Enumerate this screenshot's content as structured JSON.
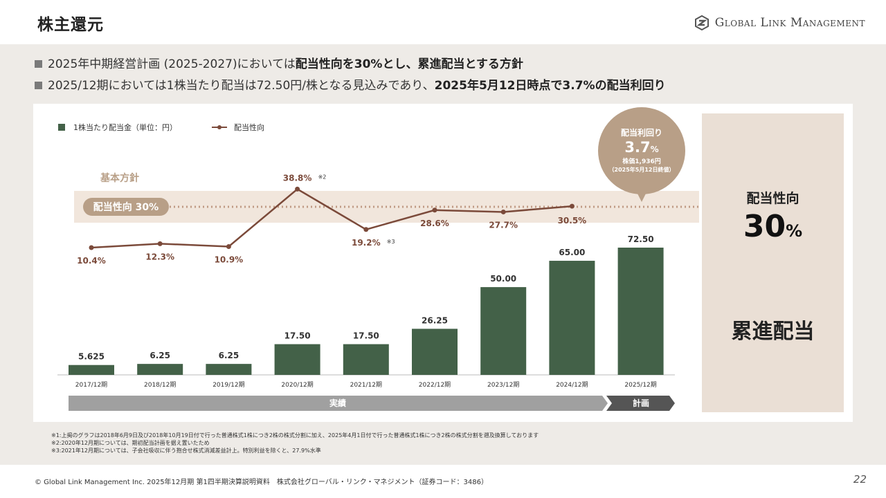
{
  "header": {
    "title": "株主還元",
    "logo_text": "Global Link Management"
  },
  "bullets": [
    {
      "normal": "2025年中期経営計画 (2025-2027)においては",
      "bold": "配当性向を30%とし、累進配当とする方針"
    },
    {
      "normal": "2025/12期においては1株当たり配当は72.50円/株となる見込みであり、",
      "bold": "2025年5月12日時点で3.7%の配当利回り"
    }
  ],
  "chart_data": {
    "type": "bar",
    "categories": [
      "2017/12期",
      "2018/12期",
      "2019/12期",
      "2020/12期",
      "2021/12期",
      "2022/12期",
      "2023/12期",
      "2024/12期",
      "2025/12期"
    ],
    "series": [
      {
        "name": "1株当たり配当金（単位：円）",
        "type": "bar",
        "color": "#436148",
        "values": [
          5.625,
          6.25,
          6.25,
          17.5,
          17.5,
          26.25,
          50.0,
          65.0,
          72.5
        ],
        "labels": [
          "5.625",
          "6.25",
          "6.25",
          "17.50",
          "17.50",
          "26.25",
          "50.00",
          "65.00",
          "72.50"
        ]
      },
      {
        "name": "配当性向",
        "type": "line",
        "color": "#7b4a3a",
        "values": [
          10.4,
          12.3,
          10.9,
          38.8,
          19.2,
          28.6,
          27.7,
          30.5,
          null
        ],
        "labels": [
          "10.4%",
          "12.3%",
          "10.9%",
          "38.8%",
          "19.2%",
          "28.6%",
          "27.7%",
          "30.5%",
          ""
        ],
        "notes": [
          "",
          "",
          "",
          "※2",
          "※3",
          "",
          "",
          "",
          ""
        ]
      }
    ],
    "policy_band_label": "基本方針",
    "policy_line_label": "配当性向 30%",
    "policy_value": 30,
    "yield_bubble": {
      "title": "配当利回り",
      "value": "3.7",
      "unit": "%",
      "price": "株価1,936円",
      "date": "（2025年5月12日終値）"
    },
    "periods": [
      {
        "label": "実績"
      },
      {
        "label": "計画"
      }
    ],
    "legend_position": "top-left"
  },
  "side": {
    "label": "配当性向",
    "value": "30",
    "unit": "%",
    "policy": "累進配当"
  },
  "footnotes": [
    "※1:上掲のグラフは2018年6月9日及び2018年10月19日付で行った普通株式1株につき2株の株式分割に加え、2025年4月1日付で行った普通株式1株につき2株の株式分割を遡及換算しております",
    "※2:2020年12月期については、期初配当計画を据え置いたため",
    "※3:2021年12月期については、子会社吸収に伴う抱合せ株式消滅差益計上。特別利益を除くと、27.9%水準"
  ],
  "footer": {
    "text": "© Global Link Management Inc. 2025年12月期 第1四半期決算説明資料　株式会社グローバル・リンク・マネジメント（証券コード：3486）",
    "page": "22"
  },
  "colors": {
    "bar": "#436148",
    "line": "#7b4a3a",
    "band": "#f1e6dc",
    "policy_pill": "#b89f87",
    "bubble": "#b89f87",
    "dotted": "#c09a84",
    "actual_arrow": "#a0a0a0",
    "plan_arrow": "#555555"
  }
}
